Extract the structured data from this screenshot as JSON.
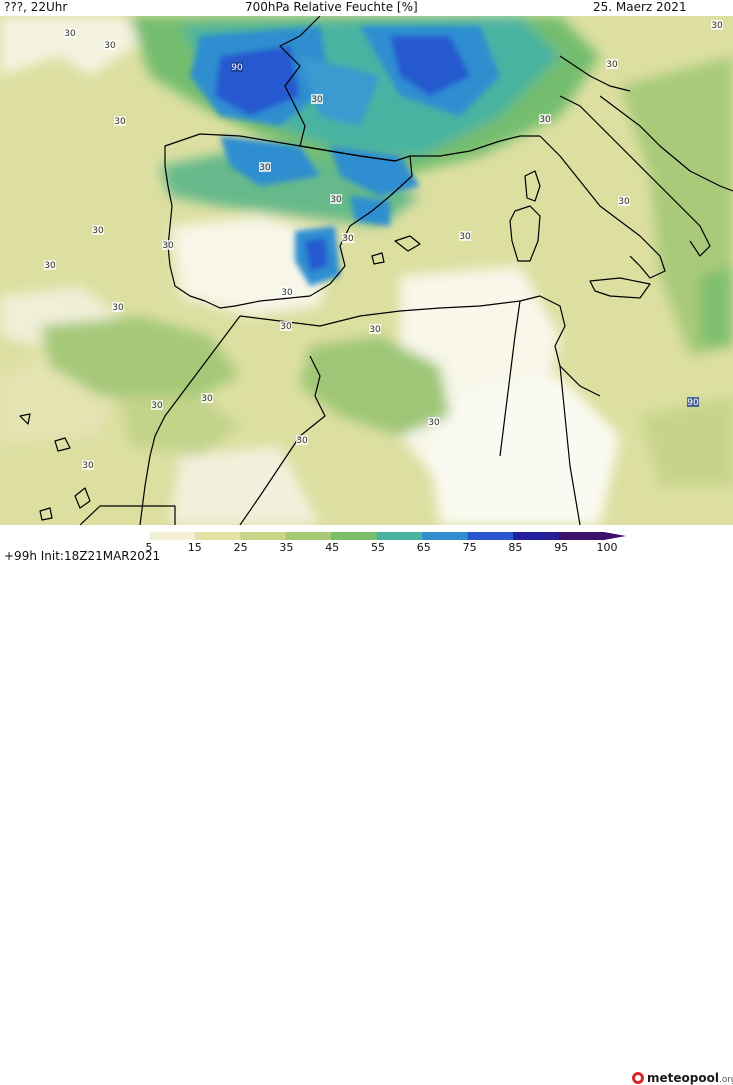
{
  "header": {
    "left": "???, 22Uhr",
    "title": "700hPa Relative Feuchte [%]",
    "date": "25. Maerz 2021"
  },
  "footer": {
    "init": "+99h  Init:18Z21MAR2021",
    "logo_main": "meteopool",
    "logo_suffix": ".org"
  },
  "legend": {
    "ticks": [
      "5",
      "15",
      "25",
      "35",
      "45",
      "55",
      "65",
      "75",
      "85",
      "95",
      "100"
    ],
    "colors": [
      "#ffffff",
      "#f4f0d4",
      "#e2e2a8",
      "#c9d48a",
      "#a7c874",
      "#78be6c",
      "#48b4a0",
      "#2e8ed0",
      "#2858d0",
      "#23209c",
      "#3c0f6c"
    ]
  },
  "map": {
    "contour_labels": [
      "30",
      "30",
      "30",
      "30",
      "30",
      "30",
      "30",
      "30",
      "30",
      "30",
      "30",
      "30",
      "30",
      "30",
      "30",
      "30",
      "30",
      "30",
      "30",
      "30",
      "30",
      "30",
      "30",
      "30",
      "90",
      "90"
    ],
    "land_color": "#000000"
  }
}
